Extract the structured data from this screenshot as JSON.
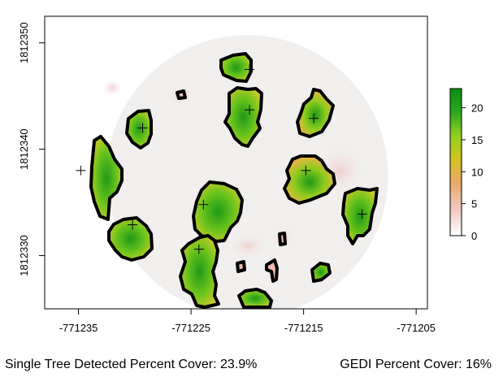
{
  "chart_data": {
    "type": "heatmap",
    "title": "",
    "xlabel": "",
    "ylabel": "",
    "xlim": [
      -771238,
      -771204
    ],
    "ylim": [
      1812325,
      1812352.5
    ],
    "x_ticks": [
      -771235,
      -771225,
      -771215,
      -771205
    ],
    "x_tick_labels": [
      "-771235",
      "-771225",
      "-771215",
      "-771205"
    ],
    "y_ticks": [
      1812330,
      1812340,
      1812350
    ],
    "y_tick_labels": [
      "1812330",
      "1812340",
      "1812350"
    ],
    "plot_footprint": {
      "center": [
        -771220,
        1812337.5
      ],
      "radius": 12.5
    },
    "colorbar": {
      "ticks": [
        0,
        5,
        10,
        15,
        20
      ],
      "tick_labels": [
        "0",
        "5",
        "10",
        "15",
        "20"
      ],
      "range": [
        0,
        23
      ],
      "colors": [
        "#ffffff",
        "#f2c8c0",
        "#e9a86a",
        "#d4c31f",
        "#8fd11e",
        "#2aa81e",
        "#0a8f12"
      ]
    },
    "background_color": "#f1eeee",
    "outline_color": "#000000",
    "tree_tops": [
      {
        "x": -771219.8,
        "y": 1812347.5,
        "height": 17
      },
      {
        "x": -771219.8,
        "y": 1812343.7,
        "height": 20
      },
      {
        "x": -771229.3,
        "y": 1812342.0,
        "height": 18
      },
      {
        "x": -771214.1,
        "y": 1812342.9,
        "height": 18
      },
      {
        "x": -771234.8,
        "y": 1812338.0,
        "height": 19
      },
      {
        "x": -771214.8,
        "y": 1812338.0,
        "height": 22
      },
      {
        "x": -771223.9,
        "y": 1812334.8,
        "height": 21
      },
      {
        "x": -771209.8,
        "y": 1812333.9,
        "height": 21
      },
      {
        "x": -771230.2,
        "y": 1812332.9,
        "height": 19
      },
      {
        "x": -771224.3,
        "y": 1812330.6,
        "height": 20
      }
    ],
    "footer": {
      "left": "Single Tree Detected Percent Cover: 23.9%",
      "right": "GEDI Percent Cover: 16%"
    }
  }
}
